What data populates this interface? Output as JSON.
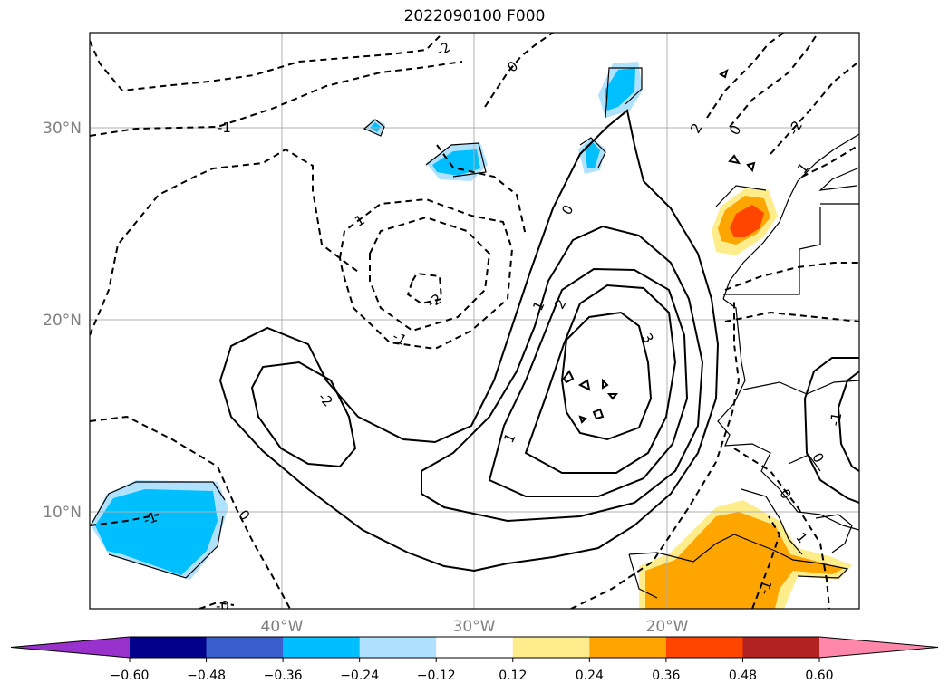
{
  "title": "2022090100 F000",
  "lat_labels": [
    "30°N",
    "20°N",
    "10°N"
  ],
  "lon_labels": [
    "40°W",
    "30°W",
    "20°W"
  ],
  "contour_labels": [
    "-2",
    "0",
    "-1",
    "1",
    "-1",
    "-2",
    "-2",
    "0",
    "1",
    "2",
    "3",
    "1",
    "2",
    "0",
    "-2",
    "1",
    "0",
    "-1",
    "0",
    "-1",
    "0",
    "-1",
    "1",
    "-0"
  ],
  "colorbar": {
    "ticks": [
      "−0.60",
      "−0.48",
      "−0.36",
      "−0.24",
      "−0.12",
      "0.12",
      "0.24",
      "0.36",
      "0.48",
      "0.60"
    ],
    "colors": [
      "#9932cc",
      "#00008b",
      "#3a5fcd",
      "#00bfff",
      "#b0e2ff",
      "#ffffff",
      "#ffec8b",
      "#ffa500",
      "#ff4500",
      "#b22222",
      "#ff88aa"
    ]
  },
  "colors": {
    "light_blue": "#b0e2ff",
    "blue": "#00bfff",
    "yellow": "#ffec8b",
    "orange": "#ffa500",
    "red": "#ff4500",
    "grid": "#b0b0b0"
  }
}
